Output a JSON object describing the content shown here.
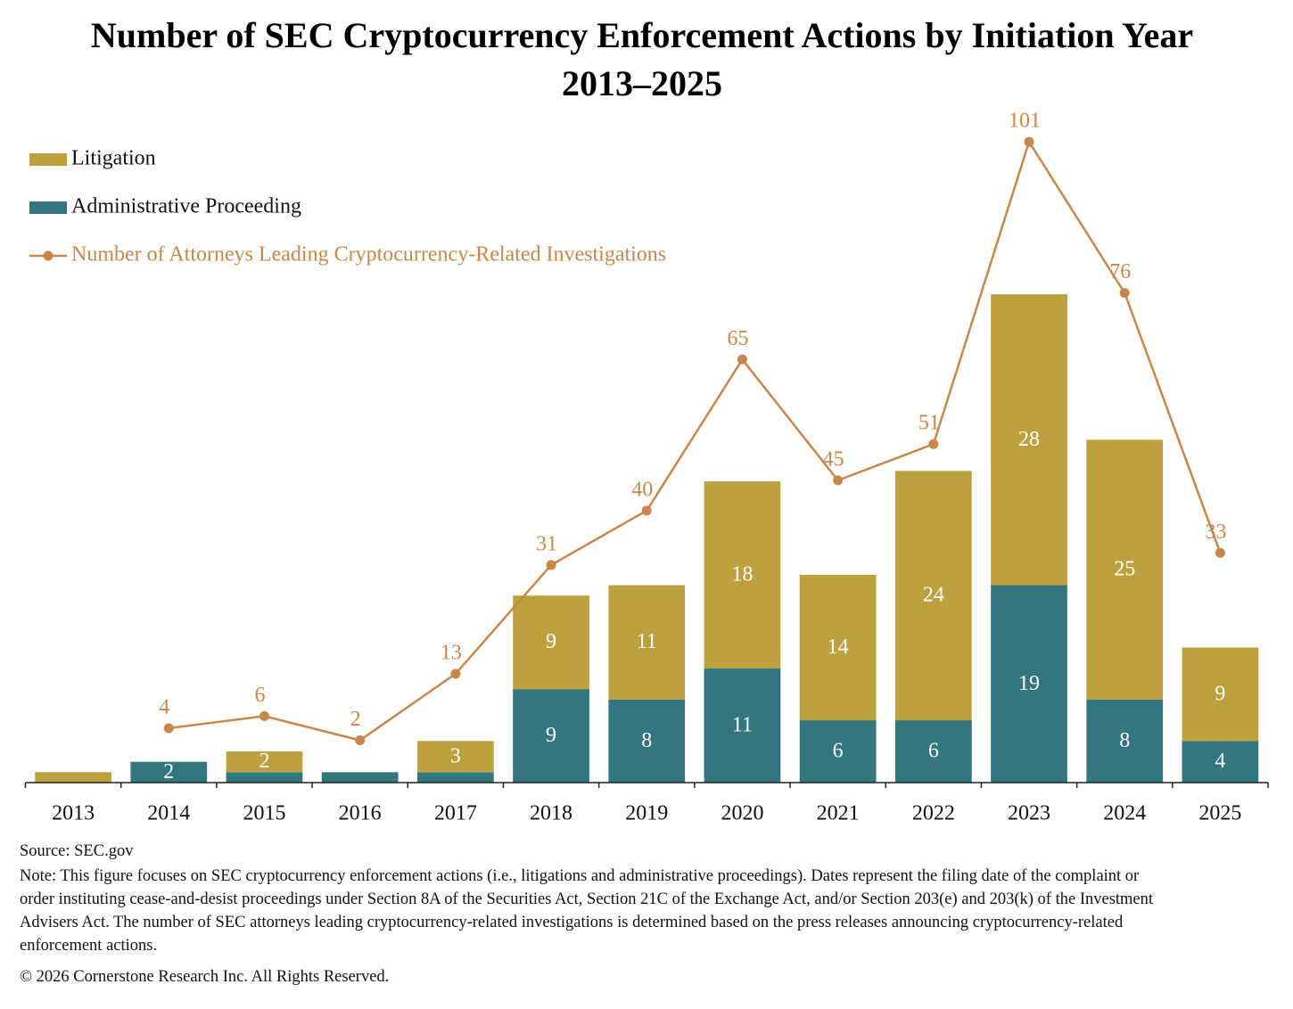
{
  "chart_data": {
    "type": "stacked-bar-line",
    "title": "Number of SEC Cryptocurrency Enforcement Actions by Initiation Year",
    "subtitle": "2013–2025",
    "categories": [
      "2013",
      "2014",
      "2015",
      "2016",
      "2017",
      "2018",
      "2019",
      "2020",
      "2021",
      "2022",
      "2023",
      "2024",
      "2025"
    ],
    "series": [
      {
        "name": "Administrative Proceeding",
        "color": "#34767e",
        "values": [
          0,
          2,
          1,
          1,
          1,
          9,
          8,
          11,
          6,
          6,
          19,
          8,
          4
        ]
      },
      {
        "name": "Litigation",
        "color": "#bea13f",
        "values": [
          1,
          0,
          2,
          0,
          3,
          9,
          11,
          18,
          14,
          24,
          28,
          25,
          9
        ]
      },
      {
        "name": "Number of Attorneys Leading Cryptocurrency-Related Investigations",
        "color": "#c8874a",
        "axis": "y2",
        "type": "line",
        "values": [
          null,
          4,
          6,
          2,
          13,
          31,
          40,
          65,
          45,
          51,
          101,
          76,
          33
        ]
      }
    ],
    "ylim": [
      0,
      64
    ],
    "y2lim": [
      -5,
      105
    ],
    "source": "Source: SEC.gov",
    "note": "Note: This figure focuses on SEC cryptocurrency enforcement actions (i.e., litigations and administrative proceedings). Dates represent the filing date of the complaint or order instituting cease-and-desist proceedings under Section 8A of the Securities Act, Section 21C of the Exchange Act, and/or Section 203(e) and 203(k) of the Investment Advisers Act. The number of SEC attorneys leading cryptocurrency-related investigations is determined based on the press releases announcing cryptocurrency-related enforcement actions.",
    "copyright": "© 2026 Cornerstone Research Inc. All Rights Reserved."
  }
}
